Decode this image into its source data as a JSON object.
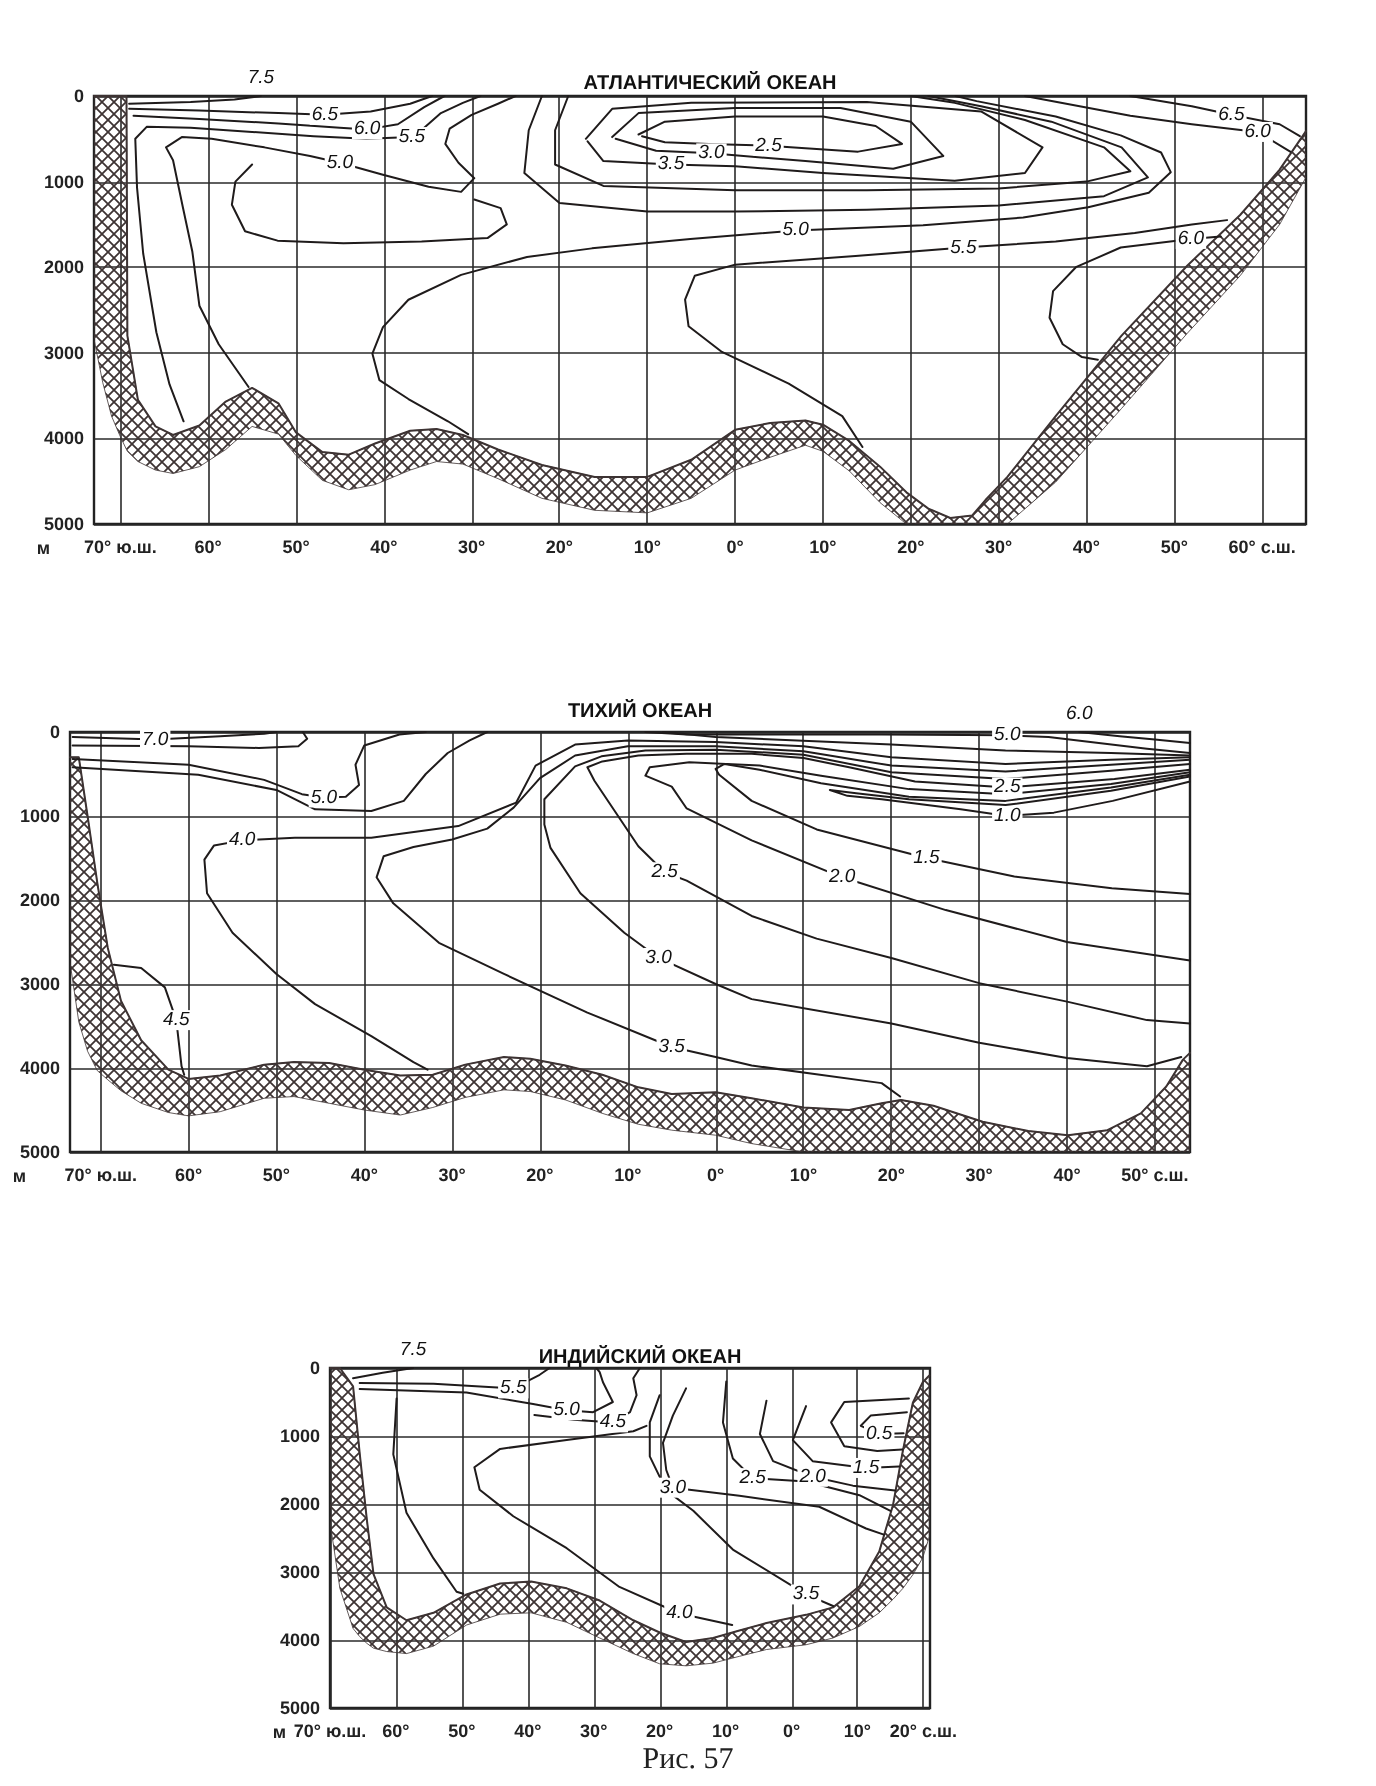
{
  "chart_data": [
    {
      "type": "line",
      "title": "АТЛАНТИЧЕСКИЙ ОКЕАН",
      "ylabel": "м",
      "xlim": [
        -73,
        65
      ],
      "ylim": [
        5000,
        0
      ],
      "xticks": [
        {
          "value": -70,
          "label": "70° ю.ш."
        },
        {
          "value": -60,
          "label": "60°"
        },
        {
          "value": -50,
          "label": "50°"
        },
        {
          "value": -40,
          "label": "40°"
        },
        {
          "value": -30,
          "label": "30°"
        },
        {
          "value": -20,
          "label": "20°"
        },
        {
          "value": -10,
          "label": "10°"
        },
        {
          "value": 0,
          "label": "0°"
        },
        {
          "value": 10,
          "label": "10°"
        },
        {
          "value": 20,
          "label": "20°"
        },
        {
          "value": 30,
          "label": "30°"
        },
        {
          "value": 40,
          "label": "40°"
        },
        {
          "value": 50,
          "label": "50°"
        },
        {
          "value": 60,
          "label": "60° с.ш."
        }
      ],
      "yticks": [
        0,
        1000,
        2000,
        3000,
        4000,
        5000
      ],
      "grid": true,
      "marker": "none",
      "line_style": "solid",
      "series": [
        {
          "color": "#3d3333",
          "x": [
            -73,
            -72,
            -71,
            -70,
            -69.3,
            -69.2,
            -68,
            -66,
            -64,
            -61,
            -58,
            -55,
            -52,
            -50,
            -47,
            -44,
            -41,
            -37,
            -34,
            -31,
            -27,
            -22,
            -16,
            -10,
            -5,
            0,
            4,
            8,
            10,
            13,
            16.5,
            19.5,
            22,
            24.5,
            27,
            28.5,
            31,
            36.5,
            44,
            51.5,
            57.5,
            62,
            65
          ],
          "values": [
            0,
            0,
            0,
            0,
            0,
            2800,
            3550,
            3860,
            3960,
            3850,
            3570,
            3410,
            3590,
            3930,
            4160,
            4190,
            4060,
            3910,
            3890,
            3960,
            4130,
            4310,
            4450,
            4450,
            4250,
            3900,
            3820,
            3790,
            3840,
            4030,
            4330,
            4630,
            4820,
            4930,
            4900,
            4720,
            4450,
            3740,
            2800,
            1980,
            1390,
            860,
            410
          ],
          "lower": [
            0,
            0,
            0,
            0,
            0,
            2800,
            3550,
            3860,
            3960,
            3850,
            3570,
            3410,
            3590,
            3930,
            4160,
            4190,
            4060,
            3910,
            3890,
            3960,
            4130,
            4310,
            4450,
            4450,
            4250,
            3900,
            3820,
            3790,
            3840,
            4030,
            4330,
            4630,
            4820,
            4930,
            4900,
            4720,
            4450,
            3740,
            2800,
            1980,
            1390,
            860,
            410
          ],
          "upper": [
            2840,
            3350,
            3740,
            3980,
            4130,
            4150,
            4270,
            4370,
            4410,
            4330,
            4130,
            3860,
            3950,
            4200,
            4490,
            4600,
            4540,
            4370,
            4270,
            4300,
            4470,
            4700,
            4840,
            4870,
            4700,
            4370,
            4220,
            4080,
            4150,
            4380,
            4750,
            5000,
            5000,
            5000,
            5000,
            5000,
            5000,
            4510,
            3650,
            2770,
            2100,
            1500,
            950
          ]
        },
        {
          "color": "#1f1b1b",
          "x": [
            -69,
            -62,
            -57,
            -54
          ],
          "values": [
            90,
            70,
            40,
            0
          ]
        },
        {
          "color": "#1f1b1b",
          "x": [
            -69,
            -61,
            -52,
            -46.7,
            -41.5,
            -37,
            -34.5
          ],
          "values": [
            150,
            170,
            200,
            220,
            180,
            90,
            0
          ]
        },
        {
          "color": "#1f1b1b",
          "x": [
            -68.5,
            -61,
            -52,
            -45,
            -41.9,
            -38.4,
            -35.4,
            -33.1
          ],
          "values": [
            230,
            270,
            320,
            370,
            390,
            330,
            130,
            0
          ]
        },
        {
          "color": "#1f1b1b",
          "x": [
            -29,
            -31,
            -33.5,
            -35.5,
            -36.8,
            -42,
            -48,
            -55,
            -62,
            -67,
            -68.3,
            -68.1,
            -67.4,
            -65.9,
            -64.4,
            -62.8
          ],
          "values": [
            0,
            80,
            200,
            380,
            480,
            500,
            470,
            420,
            370,
            360,
            500,
            1070,
            1840,
            2760,
            3370,
            3800
          ]
        },
        {
          "color": "#1f1b1b",
          "x": [
            -55.4,
            -58.8,
            -61,
            -61.8,
            -62.9,
            -64,
            -64.8,
            -63,
            -59.6,
            -53.6,
            -48.4,
            -45,
            -40.1,
            -34.9,
            -31.2,
            -29.7,
            -31.5,
            -33,
            -32.5,
            -30,
            -27,
            -25
          ],
          "values": [
            3400,
            2900,
            2450,
            1820,
            1290,
            750,
            600,
            480,
            500,
            600,
            700,
            780,
            920,
            1060,
            1120,
            960,
            780,
            560,
            380,
            220,
            90,
            0
          ]
        },
        {
          "color": "#1f1b1b",
          "x": [
            -55,
            -56.9,
            -57.3,
            -55.8,
            -52.1,
            -44.6,
            -35.7,
            -28.2,
            -26,
            -26.7,
            -29.7
          ],
          "values": [
            800,
            1000,
            1270,
            1580,
            1690,
            1720,
            1700,
            1660,
            1500,
            1310,
            1210
          ]
        },
        {
          "color": "#1f1b1b",
          "x": [
            -30.4,
            -32.7,
            -37.2,
            -40.5,
            -41.3,
            -40.1,
            -37.2,
            -31.2,
            -23.7,
            -16.3,
            -5.1,
            6.9,
            21.4,
            32.8,
            40.2,
            47.1,
            49.6,
            48.5,
            43.9,
            36.5,
            27.5,
            25.1
          ],
          "values": [
            3950,
            3800,
            3540,
            3320,
            3010,
            2700,
            2380,
            2090,
            1880,
            1780,
            1670,
            1570,
            1510,
            1420,
            1300,
            1130,
            890,
            660,
            460,
            240,
            60,
            0
          ]
        },
        {
          "color": "#1f1b1b",
          "x": [
            -22,
            -23.5,
            -24,
            -20,
            -10,
            0,
            15,
            30,
            42,
            47,
            44,
            36,
            28,
            22
          ],
          "values": [
            0,
            400,
            900,
            1250,
            1350,
            1350,
            1330,
            1280,
            1170,
            950,
            600,
            300,
            120,
            0
          ]
        },
        {
          "color": "#1f1b1b",
          "x": [
            -19,
            -20.5,
            -20.5,
            -15,
            0,
            15,
            30,
            40,
            45,
            42,
            33,
            25,
            20
          ],
          "values": [
            0,
            400,
            800,
            1050,
            1100,
            1100,
            1080,
            1000,
            880,
            600,
            280,
            80,
            0
          ]
        },
        {
          "color": "#1f1b1b",
          "x": [
            -17,
            -14,
            -5,
            15,
            28,
            35,
            33,
            25,
            10,
            0,
            -7.3,
            -15,
            -16.8
          ],
          "values": [
            500,
            150,
            80,
            70,
            180,
            600,
            900,
            990,
            900,
            820,
            800,
            760,
            530
          ]
        },
        {
          "color": "#1f1b1b",
          "x": [
            -14,
            -11,
            0,
            12,
            20,
            23.7,
            18,
            8,
            -2.7,
            -9,
            -13.6
          ],
          "values": [
            480,
            200,
            140,
            140,
            300,
            700,
            850,
            760,
            670,
            640,
            500
          ]
        },
        {
          "color": "#1f1b1b",
          "x": [
            -11,
            -8,
            0,
            10,
            16,
            19,
            14,
            8,
            3.8,
            -3,
            -8,
            -10.6
          ],
          "values": [
            450,
            300,
            240,
            240,
            350,
            560,
            650,
            610,
            580,
            560,
            540,
            470
          ]
        },
        {
          "color": "#1f1b1b",
          "x": [
            56,
            52,
            45.5,
            36.5,
            26,
            13.7,
            0,
            -4.6,
            -5.7,
            -5.3,
            -1.5,
            6.1,
            12.2,
            14.5
          ],
          "values": [
            1450,
            1500,
            1600,
            1700,
            1770,
            1870,
            1970,
            2100,
            2380,
            2690,
            2990,
            3360,
            3740,
            4100
          ]
        },
        {
          "color": "#1f1b1b",
          "x": [
            55.3,
            51.9,
            43.9,
            38.8,
            36.2,
            35.8,
            37.3,
            39.5,
            41.3
          ],
          "values": [
            1640,
            1670,
            1770,
            2000,
            2280,
            2590,
            2900,
            3050,
            3080
          ]
        },
        {
          "color": "#1f1b1b",
          "x": [
            45,
            52,
            56.5,
            62,
            64.3
          ],
          "values": [
            0,
            120,
            220,
            330,
            470
          ]
        },
        {
          "color": "#1f1b1b",
          "x": [
            33,
            45,
            52,
            59.5,
            63.2
          ],
          "values": [
            0,
            230,
            330,
            420,
            650
          ]
        }
      ],
      "annotations": [
        {
          "text": "7.5",
          "x": -54,
          "y": 0
        },
        {
          "text": "6.5",
          "x": -46.7,
          "y": 220
        },
        {
          "text": "6.0",
          "x": -41.9,
          "y": 390
        },
        {
          "text": "5.5",
          "x": -36.8,
          "y": 480
        },
        {
          "text": "5.0",
          "x": -45,
          "y": 780
        },
        {
          "text": "2.5",
          "x": 3.8,
          "y": 580
        },
        {
          "text": "3.0",
          "x": -2.7,
          "y": 670
        },
        {
          "text": "3.5",
          "x": -7.3,
          "y": 800
        },
        {
          "text": "5.0",
          "x": 6.9,
          "y": 1570
        },
        {
          "text": "5.5",
          "x": 26,
          "y": 1770
        },
        {
          "text": "6.0",
          "x": 51.9,
          "y": 1670
        },
        {
          "text": "6.5",
          "x": 56.5,
          "y": 220
        },
        {
          "text": "6.0",
          "x": 59.5,
          "y": 420
        }
      ]
    },
    {
      "type": "line",
      "title": "ТИХИЙ ОКЕАН",
      "ylabel": "м",
      "xlim": [
        -73.5,
        54
      ],
      "ylim": [
        5000,
        0
      ],
      "xticks": [
        {
          "value": -70,
          "label": "70° ю.ш."
        },
        {
          "value": -60,
          "label": "60°"
        },
        {
          "value": -50,
          "label": "50°"
        },
        {
          "value": -40,
          "label": "40°"
        },
        {
          "value": -30,
          "label": "30°"
        },
        {
          "value": -20,
          "label": "20°"
        },
        {
          "value": -10,
          "label": "10°"
        },
        {
          "value": 0,
          "label": "0°"
        },
        {
          "value": 10,
          "label": "10°"
        },
        {
          "value": 20,
          "label": "20°"
        },
        {
          "value": 30,
          "label": "30°"
        },
        {
          "value": 40,
          "label": "40°"
        },
        {
          "value": 50,
          "label": "50° с.ш."
        }
      ],
      "yticks": [
        0,
        1000,
        2000,
        3000,
        4000,
        5000
      ],
      "grid": true,
      "marker": "none",
      "line_style": "solid",
      "series": [
        {
          "color": "#3d3333",
          "x": [
            -73.5,
            -72.5,
            -71.5,
            -70.4,
            -69.2,
            -67.7,
            -65.4,
            -62.3,
            -60,
            -56.4,
            -51.4,
            -48,
            -44,
            -40,
            -35.9,
            -32.2,
            -28.5,
            -24.1,
            -21.1,
            -17.1,
            -12.9,
            -8.8,
            -5,
            0,
            4.1,
            10,
            15.2,
            18.9,
            21.1,
            24.8,
            30.4,
            35.6,
            40.1,
            44.6,
            48.4,
            51.3,
            53.2,
            54
          ],
          "values": [
            300,
            300,
            1000,
            1790,
            2570,
            3200,
            3670,
            4020,
            4130,
            4090,
            3960,
            3930,
            3940,
            4020,
            4090,
            4080,
            3960,
            3870,
            3890,
            3970,
            4080,
            4230,
            4310,
            4290,
            4360,
            4470,
            4500,
            4420,
            4380,
            4450,
            4640,
            4750,
            4800,
            4740,
            4540,
            4220,
            3900,
            3820
          ],
          "lower": [
            300,
            300,
            1000,
            1790,
            2570,
            3200,
            3670,
            4020,
            4130,
            4090,
            3960,
            3930,
            3940,
            4020,
            4090,
            4080,
            3960,
            3870,
            3890,
            3970,
            4080,
            4230,
            4310,
            4290,
            4360,
            4470,
            4500,
            4420,
            4380,
            4450,
            4640,
            4750,
            4800,
            4740,
            4540,
            4220,
            3900,
            3820
          ],
          "upper": [
            2740,
            3450,
            3800,
            4030,
            4140,
            4270,
            4420,
            4530,
            4570,
            4520,
            4360,
            4340,
            4420,
            4500,
            4560,
            4470,
            4350,
            4260,
            4280,
            4380,
            4540,
            4670,
            4740,
            4800,
            4900,
            5000,
            5000,
            5000,
            5000,
            5000,
            5000,
            5000,
            5000,
            5000,
            5000,
            5000,
            5000,
            5000
          ]
        },
        {
          "color": "#1f1b1b",
          "x": [
            -73.2,
            -63.8,
            -56.4,
            -51.4,
            -50
          ],
          "values": [
            60,
            90,
            50,
            20,
            0
          ]
        },
        {
          "color": "#1f1b1b",
          "x": [
            -73.2,
            -60,
            -52,
            -47.5,
            -46.5,
            -47
          ],
          "values": [
            160,
            170,
            190,
            170,
            80,
            0
          ]
        },
        {
          "color": "#1f1b1b",
          "x": [
            -73.2,
            -60,
            -51.4,
            -47.1,
            -44.6,
            -42.1,
            -40.6,
            -41,
            -40,
            -36,
            -33
          ],
          "values": [
            320,
            390,
            570,
            740,
            780,
            770,
            630,
            390,
            160,
            30,
            0
          ]
        },
        {
          "color": "#1f1b1b",
          "x": [
            -73.2,
            -58.9,
            -50,
            -45.6,
            -39.2,
            -35.5,
            -33,
            -30.5,
            -28,
            -26
          ],
          "values": [
            420,
            510,
            690,
            920,
            940,
            820,
            500,
            250,
            100,
            0
          ]
        },
        {
          "color": "#1f1b1b",
          "x": [
            54,
            45,
            33,
            20,
            10,
            0,
            -10,
            -16,
            -20.5,
            -22.7,
            -29.3,
            -39.2,
            -47.9,
            -53.9,
            -57.1,
            -58.2,
            -57.9,
            -55,
            -50,
            -45.6,
            -39.2,
            -34.4,
            -32.8
          ],
          "values": [
            300,
            330,
            380,
            300,
            170,
            120,
            100,
            150,
            400,
            840,
            1120,
            1260,
            1260,
            1290,
            1350,
            1520,
            1920,
            2390,
            2880,
            3240,
            3620,
            3930,
            4020
          ]
        },
        {
          "color": "#1f1b1b",
          "x": [
            54,
            45,
            33,
            20,
            10,
            0,
            -10,
            -16,
            -20,
            -23,
            -26,
            -30,
            -34.4,
            -37.8,
            -38.6,
            -36.7,
            -31.5,
            -24.1,
            -14.6,
            -5,
            0,
            4.1,
            18.9,
            21
          ],
          "values": [
            330,
            390,
            470,
            400,
            230,
            170,
            170,
            280,
            550,
            900,
            1150,
            1280,
            1370,
            1480,
            1730,
            2040,
            2510,
            2880,
            3340,
            3750,
            3870,
            3970,
            4180,
            4340
          ]
        },
        {
          "color": "#1f1b1b",
          "x": [
            54,
            45,
            33,
            20,
            10,
            0,
            -8,
            -13,
            -16,
            -19.5,
            -19.5,
            -18.8,
            -15.4,
            -10.4,
            -6.5,
            0,
            4.1,
            20,
            30,
            40,
            49.1,
            53
          ],
          "values": [
            380,
            460,
            560,
            480,
            270,
            210,
            220,
            290,
            410,
            800,
            1100,
            1380,
            1920,
            2390,
            2690,
            3000,
            3180,
            3470,
            3700,
            3880,
            3980,
            3870
          ]
        },
        {
          "color": "#1f1b1b",
          "x": [
            54,
            45.4,
            33.2,
            22.7,
            15.2,
            10,
            4.1,
            -3.3,
            -8.8,
            -12.9,
            -14.6,
            -13.8,
            -11.3,
            -8.8,
            -5.8,
            -3.3,
            4.1,
            11.5,
            20,
            30,
            40,
            49.1,
            54
          ],
          "values": [
            450,
            560,
            660,
            590,
            420,
            310,
            260,
            260,
            280,
            350,
            420,
            580,
            970,
            1360,
            1670,
            1770,
            2190,
            2460,
            2690,
            2990,
            3210,
            3430,
            3470
          ]
        },
        {
          "color": "#1f1b1b",
          "x": [
            54,
            45,
            33,
            22,
            12,
            5,
            -3,
            -7.5,
            -8,
            -5,
            -3.3,
            4.1,
            14.4,
            26.2,
            40,
            54
          ],
          "values": [
            480,
            620,
            740,
            680,
            520,
            400,
            360,
            420,
            520,
            650,
            910,
            1290,
            1730,
            2120,
            2500,
            2720
          ]
        },
        {
          "color": "#1f1b1b",
          "x": [
            54,
            45,
            33,
            22,
            12,
            5,
            1,
            0,
            0.4,
            4.1,
            11.5,
            24,
            34,
            45.1,
            54
          ],
          "values": [
            510,
            660,
            820,
            770,
            610,
            450,
            380,
            440,
            510,
            820,
            1160,
            1500,
            1720,
            1860,
            1930
          ]
        },
        {
          "color": "#1f1b1b",
          "x": [
            54,
            45,
            33,
            22,
            16,
            13,
            15,
            18.9,
            27.9,
            33.2,
            38.5,
            45.2,
            54
          ],
          "values": [
            530,
            700,
            870,
            800,
            730,
            690,
            760,
            800,
            920,
            1000,
            960,
            820,
            590
          ]
        },
        {
          "color": "#1f1b1b",
          "x": [
            -8,
            -3.3,
            18.9,
            33.2,
            37.9,
            49.1,
            54
          ],
          "values": [
            0,
            30,
            30,
            40,
            60,
            200,
            250
          ]
        },
        {
          "color": "#1f1b1b",
          "x": [
            -6,
            0,
            20,
            33,
            45,
            54
          ],
          "values": [
            0,
            60,
            150,
            220,
            250,
            280
          ]
        },
        {
          "color": "#1f1b1b",
          "x": [
            41.4,
            46,
            50,
            54
          ],
          "values": [
            0,
            50,
            90,
            130
          ]
        },
        {
          "color": "#1f1b1b",
          "x": [
            -68.5,
            -65.4,
            -62.7,
            -61.4,
            -60.8,
            -60.5
          ],
          "values": [
            2770,
            2810,
            3040,
            3430,
            3980,
            4080
          ]
        }
      ],
      "annotations": [
        {
          "text": "7.0",
          "x": -63.8,
          "y": 90
        },
        {
          "text": "5.0",
          "x": -44.6,
          "y": 780
        },
        {
          "text": "4.0",
          "x": -53.9,
          "y": 1290
        },
        {
          "text": "4.5",
          "x": -61.4,
          "y": 3430
        },
        {
          "text": "2.5",
          "x": -5.8,
          "y": 1670
        },
        {
          "text": "3.0",
          "x": -6.5,
          "y": 2690
        },
        {
          "text": "3.5",
          "x": -5,
          "y": 3750
        },
        {
          "text": "5.0",
          "x": 33.2,
          "y": 40
        },
        {
          "text": "6.0",
          "x": 41.4,
          "y": 0
        },
        {
          "text": "2.5",
          "x": 33.2,
          "y": 660
        },
        {
          "text": "1.0",
          "x": 33.2,
          "y": 1000
        },
        {
          "text": "1.5",
          "x": 24,
          "y": 1500
        },
        {
          "text": "2.0",
          "x": 14.4,
          "y": 1730
        }
      ]
    },
    {
      "type": "line",
      "title": "ИНДИЙСКИЙ ОКЕАН",
      "ylabel": "м",
      "xlim": [
        -70,
        21
      ],
      "ylim": [
        5000,
        0
      ],
      "xticks": [
        {
          "value": -70,
          "label": "70° ю.ш."
        },
        {
          "value": -60,
          "label": "60°"
        },
        {
          "value": -50,
          "label": "50°"
        },
        {
          "value": -40,
          "label": "40°"
        },
        {
          "value": -30,
          "label": "30°"
        },
        {
          "value": -20,
          "label": "20°"
        },
        {
          "value": -10,
          "label": "10°"
        },
        {
          "value": 0,
          "label": "0°"
        },
        {
          "value": 10,
          "label": "10°"
        },
        {
          "value": 20,
          "label": "20° с.ш."
        }
      ],
      "yticks": [
        0,
        1000,
        2000,
        3000,
        4000,
        5000
      ],
      "grid": true,
      "marker": "none",
      "line_style": "solid",
      "series": [
        {
          "color": "#3d3333",
          "x": [
            -70,
            -68.5,
            -66.5,
            -65.5,
            -64.4,
            -63.4,
            -61.4,
            -58.4,
            -54.3,
            -49.3,
            -44.2,
            -39.5,
            -34.1,
            -29.1,
            -24,
            -20,
            -16,
            -11.9,
            -7.9,
            -3.8,
            2.2,
            6.3,
            10.3,
            13.3,
            15.4,
            16.9,
            18.4,
            19.9,
            20.9
          ],
          "values": [
            0,
            0,
            270,
            1250,
            2240,
            3030,
            3520,
            3710,
            3600,
            3330,
            3170,
            3140,
            3240,
            3420,
            3710,
            3890,
            4030,
            3970,
            3860,
            3750,
            3630,
            3520,
            3210,
            2700,
            2010,
            1210,
            510,
            210,
            110
          ],
          "lower": [
            0,
            0,
            270,
            1250,
            2240,
            3030,
            3520,
            3710,
            3600,
            3330,
            3170,
            3140,
            3240,
            3420,
            3710,
            3890,
            4030,
            3970,
            3860,
            3750,
            3630,
            3520,
            3210,
            2700,
            2010,
            1210,
            510,
            210,
            110
          ],
          "upper": [
            2260,
            3240,
            3830,
            3950,
            4050,
            4120,
            4170,
            4200,
            4090,
            3780,
            3620,
            3600,
            3740,
            3970,
            4200,
            4350,
            4380,
            4340,
            4240,
            4140,
            4070,
            3970,
            3800,
            3600,
            3400,
            3240,
            3040,
            2790,
            2480
          ]
        },
        {
          "color": "#1f1b1b",
          "x": [
            -66.5,
            -62,
            -57.4
          ],
          "values": [
            150,
            70,
            0
          ]
        },
        {
          "color": "#1f1b1b",
          "x": [
            -65.5,
            -54.3,
            -42.2,
            -38.2,
            -36.7
          ],
          "values": [
            220,
            230,
            300,
            100,
            0
          ]
        },
        {
          "color": "#1f1b1b",
          "x": [
            -65.5,
            -49.3,
            -39.2,
            -34.1,
            -30.1,
            -27.1,
            -28.6,
            -29.1,
            -29.6
          ],
          "values": [
            310,
            360,
            530,
            620,
            650,
            500,
            210,
            60,
            0
          ]
        },
        {
          "color": "#1f1b1b",
          "x": [
            -39,
            -33,
            -27.1,
            -24.5,
            -23.5,
            -24,
            -23
          ],
          "values": [
            690,
            760,
            800,
            650,
            400,
            150,
            0
          ]
        },
        {
          "color": "#1f1b1b",
          "x": [
            -59.9,
            -60.4,
            -58.4,
            -54.3,
            -50.8,
            -49.8
          ],
          "values": [
            450,
            1270,
            2130,
            2800,
            3290,
            3320
          ]
        },
        {
          "color": "#1f1b1b",
          "x": [
            -22,
            -24,
            -34.1,
            -44.2,
            -48.1,
            -47.3,
            -42.2,
            -34.1,
            -26.1,
            -17,
            -9
          ],
          "values": [
            850,
            930,
            1060,
            1190,
            1460,
            1790,
            2180,
            2650,
            3220,
            3610,
            3780
          ]
        },
        {
          "color": "#1f1b1b",
          "x": [
            -20,
            -21.5,
            -21.5,
            -19,
            -14.9,
            -8.9,
            2.2,
            6.3
          ],
          "values": [
            400,
            800,
            1300,
            1800,
            2100,
            2670,
            3330,
            3500
          ]
        },
        {
          "color": "#1f1b1b",
          "x": [
            -16,
            -18,
            -19.5,
            -19,
            -18,
            -7.9,
            4.2,
            11.3,
            14
          ],
          "values": [
            300,
            700,
            1100,
            1500,
            1760,
            1880,
            2040,
            2360,
            2450
          ]
        },
        {
          "color": "#1f1b1b",
          "x": [
            -9.9,
            -10.4,
            -8.9,
            -5.9,
            2.2,
            10.3,
            15
          ],
          "values": [
            200,
            800,
            1330,
            1620,
            1670,
            1870,
            2100
          ]
        },
        {
          "color": "#1f1b1b",
          "x": [
            -3.8,
            -4.8,
            -2.8,
            3.2,
            9.3,
            15.7
          ],
          "values": [
            480,
            970,
            1370,
            1600,
            1730,
            1800
          ]
        },
        {
          "color": "#1f1b1b",
          "x": [
            2.2,
            0.2,
            3.2,
            11.3,
            16.3
          ],
          "values": [
            560,
            1060,
            1370,
            1470,
            1450
          ]
        },
        {
          "color": "#1f1b1b",
          "x": [
            17.8,
            8,
            6,
            8,
            13,
            16.8
          ],
          "values": [
            450,
            500,
            800,
            1150,
            1220,
            1200
          ]
        },
        {
          "color": "#1f1b1b",
          "x": [
            17.5,
            12,
            10.5,
            13.3,
            17
          ],
          "values": [
            650,
            700,
            850,
            970,
            960
          ]
        }
      ],
      "annotations": [
        {
          "text": "7.5",
          "x": -57.4,
          "y": 0
        },
        {
          "text": "5.5",
          "x": -42.2,
          "y": 300
        },
        {
          "text": "5.0",
          "x": -34.1,
          "y": 620
        },
        {
          "text": "4.5",
          "x": -27.1,
          "y": 800
        },
        {
          "text": "4.0",
          "x": -17,
          "y": 3610
        },
        {
          "text": "3.0",
          "x": -18,
          "y": 1760
        },
        {
          "text": "2.5",
          "x": -5.9,
          "y": 1620
        },
        {
          "text": "2.0",
          "x": 3.2,
          "y": 1600
        },
        {
          "text": "1.5",
          "x": 11.3,
          "y": 1470
        },
        {
          "text": "0.5",
          "x": 13.3,
          "y": 970
        },
        {
          "text": "3.5",
          "x": 2.2,
          "y": 3330
        },
        "Рис. 57"
      ]
    }
  ]
}
